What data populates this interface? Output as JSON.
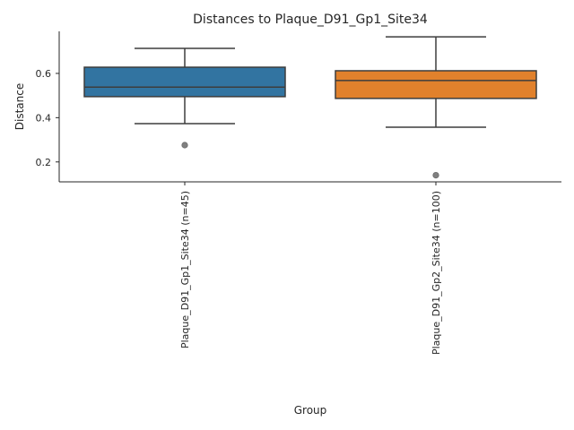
{
  "chart_data": {
    "type": "box",
    "title": "Distances to Plaque_D91_Gp1_Site34",
    "xlabel": "Group",
    "ylabel": "Distance",
    "ylim": [
      0.11,
      0.79
    ],
    "yticks": [
      0.2,
      0.4,
      0.6
    ],
    "ytick_labels": [
      "0.2",
      "0.4",
      "0.6"
    ],
    "grid": false,
    "categories": [
      "Plaque_D91_Gp1_Site34 (n=45)",
      "Plaque_D91_Gp2_Site34 (n=100)"
    ],
    "boxes": [
      {
        "whisker_low": 0.373,
        "q1": 0.495,
        "median": 0.538,
        "q3": 0.628,
        "whisker_high": 0.713,
        "outliers": [
          0.276
        ],
        "color": "#3274a1"
      },
      {
        "whisker_low": 0.357,
        "q1": 0.487,
        "median": 0.568,
        "q3": 0.612,
        "whisker_high": 0.765,
        "outliers": [
          0.14
        ],
        "color": "#e1812c"
      }
    ]
  }
}
